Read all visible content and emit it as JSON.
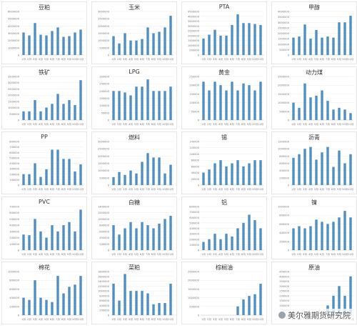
{
  "months": [
    "1月",
    "2月",
    "3月",
    "4月",
    "5月",
    "6月",
    "7月",
    "8月",
    "9月",
    "10月",
    "11月"
  ],
  "bar_color": "#4e8fc7",
  "watermark": "美尔雅期货研究院",
  "chart_data": [
    {
      "type": "bar",
      "title": "豆粕",
      "ylim": [
        0,
        6000000
      ],
      "yticks": [
        0,
        1000000,
        2000000,
        3000000,
        4000000,
        5000000,
        6000000
      ],
      "values": [
        3100000,
        2700000,
        4400000,
        2800000,
        2700000,
        3300000,
        3800000,
        2500000,
        2600000,
        3100000,
        3500000
      ]
    },
    {
      "type": "bar",
      "title": "玉米",
      "ylim": [
        0,
        3000000
      ],
      "yticks": [
        0,
        500000,
        1000000,
        1500000,
        2000000,
        2500000,
        3000000
      ],
      "values": [
        1300000,
        800000,
        1500000,
        1000000,
        1000000,
        1100000,
        1900000,
        1500000,
        1600000,
        1900000,
        2700000
      ]
    },
    {
      "type": "bar",
      "title": "PTA",
      "ylim": [
        0,
        4500000
      ],
      "yticks": [
        0,
        500000,
        1000000,
        1500000,
        2000000,
        2500000,
        3000000,
        3500000,
        4000000,
        4500000
      ],
      "values": [
        1700000,
        2100000,
        2600000,
        2000000,
        2000000,
        3100000,
        4200000,
        3300000,
        3300000,
        3200000,
        3100000
      ]
    },
    {
      "type": "bar",
      "title": "甲醇",
      "ylim": [
        0,
        4000000
      ],
      "yticks": [
        0,
        500000,
        1000000,
        1500000,
        2000000,
        2500000,
        3000000,
        3500000,
        4000000
      ],
      "values": [
        1600000,
        1700000,
        2800000,
        1500000,
        2300000,
        1600000,
        1700000,
        1600000,
        3000000,
        3000000,
        3600000
      ]
    },
    {
      "type": "bar",
      "title": "铁矿",
      "ylim": [
        0,
        3500000
      ],
      "yticks": [
        0,
        500000,
        1000000,
        1500000,
        2000000,
        2500000,
        3000000,
        3500000
      ],
      "values": [
        700000,
        700000,
        1600000,
        700000,
        1000000,
        1300000,
        2100000,
        1300000,
        1600000,
        1200000,
        3200000
      ]
    },
    {
      "type": "bar",
      "title": "LPG",
      "ylim": [
        0,
        300000
      ],
      "yticks": [
        0,
        50000,
        100000,
        150000,
        200000,
        250000,
        300000
      ],
      "values": [
        200000,
        200000,
        190000,
        170000,
        230000,
        230000,
        280000,
        200000,
        200000,
        200000,
        230000
      ]
    },
    {
      "type": "bar",
      "title": "黄金",
      "ylim": [
        0,
        250000
      ],
      "yticks": [
        0,
        50000,
        100000,
        150000,
        200000,
        250000
      ],
      "values": [
        220000,
        170000,
        220000,
        200000,
        170000,
        220000,
        170000,
        210000,
        200000,
        170000,
        220000
      ]
    },
    {
      "type": "bar",
      "title": "动力煤",
      "ylim": [
        0,
        2500000
      ],
      "yticks": [
        0,
        500000,
        1000000,
        1500000,
        2000000,
        2500000
      ],
      "values": [
        1000000,
        700000,
        2100000,
        1300000,
        1400000,
        1700000,
        1100000,
        600000,
        700000,
        600000,
        400000
      ]
    },
    {
      "type": "bar",
      "title": "PP",
      "ylim": [
        0,
        800000
      ],
      "yticks": [
        0,
        100000,
        200000,
        300000,
        400000,
        500000,
        600000,
        700000,
        800000
      ],
      "values": [
        200000,
        200000,
        400000,
        150000,
        290000,
        650000,
        650000,
        480000,
        480000,
        250000,
        380000
      ]
    },
    {
      "type": "bar",
      "title": "燃料",
      "ylim": [
        0,
        3000000
      ],
      "yticks": [
        0,
        500000,
        1000000,
        1500000,
        2000000,
        2500000,
        3000000
      ],
      "values": [
        550000,
        900000,
        700000,
        1000000,
        800000,
        1600000,
        2200000,
        1900000,
        1900000,
        800000,
        1400000
      ]
    },
    {
      "type": "bar",
      "title": "锡",
      "ylim": [
        0,
        140000
      ],
      "yticks": [
        0,
        20000,
        40000,
        60000,
        80000,
        100000,
        120000,
        140000
      ],
      "values": [
        40000,
        50000,
        70000,
        80000,
        60000,
        70000,
        80000,
        60000,
        70000,
        80000,
        80000
      ]
    },
    {
      "type": "bar",
      "title": "沥青",
      "ylim": [
        0,
        1200000
      ],
      "yticks": [
        0,
        200000,
        400000,
        600000,
        800000,
        1000000,
        1200000
      ],
      "values": [
        750000,
        850000,
        1000000,
        1050000,
        700000,
        900000,
        1050000,
        500000,
        950000,
        600000,
        850000
      ]
    },
    {
      "type": "bar",
      "title": "PVC",
      "ylim": [
        0,
        700000
      ],
      "yticks": [
        0,
        100000,
        200000,
        300000,
        400000,
        500000,
        600000,
        700000
      ],
      "values": [
        250000,
        240000,
        500000,
        300000,
        200000,
        400000,
        300000,
        400000,
        450000,
        300000,
        650000
      ]
    },
    {
      "type": "bar",
      "title": "白糖",
      "ylim": [
        0,
        1400000
      ],
      "yticks": [
        0,
        200000,
        400000,
        600000,
        800000,
        1000000,
        1200000,
        1400000
      ],
      "values": [
        800000,
        500000,
        700000,
        900000,
        700000,
        900000,
        800000,
        700000,
        850000,
        1000000,
        1100000
      ]
    },
    {
      "type": "bar",
      "title": "铝",
      "ylim": [
        0,
        800000
      ],
      "yticks": [
        0,
        100000,
        200000,
        300000,
        400000,
        500000,
        600000,
        700000,
        800000
      ],
      "values": [
        150000,
        200000,
        300000,
        200000,
        300000,
        250000,
        400000,
        500000,
        650000,
        550000,
        400000
      ]
    },
    {
      "type": "bar",
      "title": "镍",
      "ylim": [
        0,
        1000000
      ],
      "yticks": [
        0,
        200000,
        400000,
        600000,
        800000,
        1000000
      ],
      "values": [
        500000,
        550000,
        500000,
        550000,
        700000,
        650000,
        600000,
        650000,
        750000,
        900000,
        750000
      ]
    },
    {
      "type": "bar",
      "title": "棉花",
      "ylim": [
        0,
        1000000
      ],
      "yticks": [
        0,
        200000,
        400000,
        600000,
        800000,
        1000000
      ],
      "values": [
        400000,
        350000,
        800000,
        400000,
        350000,
        300000,
        900000,
        500000,
        650000,
        700000,
        900000
      ]
    },
    {
      "type": "bar",
      "title": "菜粕",
      "ylim": [
        0,
        1800000
      ],
      "yticks": [
        0,
        200000,
        400000,
        600000,
        800000,
        1000000,
        1200000,
        1400000,
        1600000,
        1800000
      ],
      "values": [
        1300000,
        600000,
        1700000,
        1000000,
        1000000,
        1000000,
        900000,
        450000,
        500000,
        500000,
        1300000
      ]
    },
    {
      "type": "bar",
      "title": "棕榈油",
      "ylim": [
        0,
        2500000
      ],
      "yticks": [
        0,
        500000,
        1000000,
        1500000,
        2000000,
        2500000
      ],
      "values": [
        0,
        0,
        0,
        0,
        0,
        0,
        500000,
        900000,
        1100000,
        1200000,
        1800000
      ]
    },
    {
      "type": "bar",
      "title": "原油",
      "ylim": [
        0,
        450000
      ],
      "yticks": [
        0,
        50000,
        100000,
        150000,
        200000,
        250000,
        300000,
        350000,
        400000,
        450000
      ],
      "values": [
        0,
        0,
        0,
        0,
        0,
        0,
        100000,
        200000,
        300000,
        200000,
        400000
      ]
    }
  ]
}
